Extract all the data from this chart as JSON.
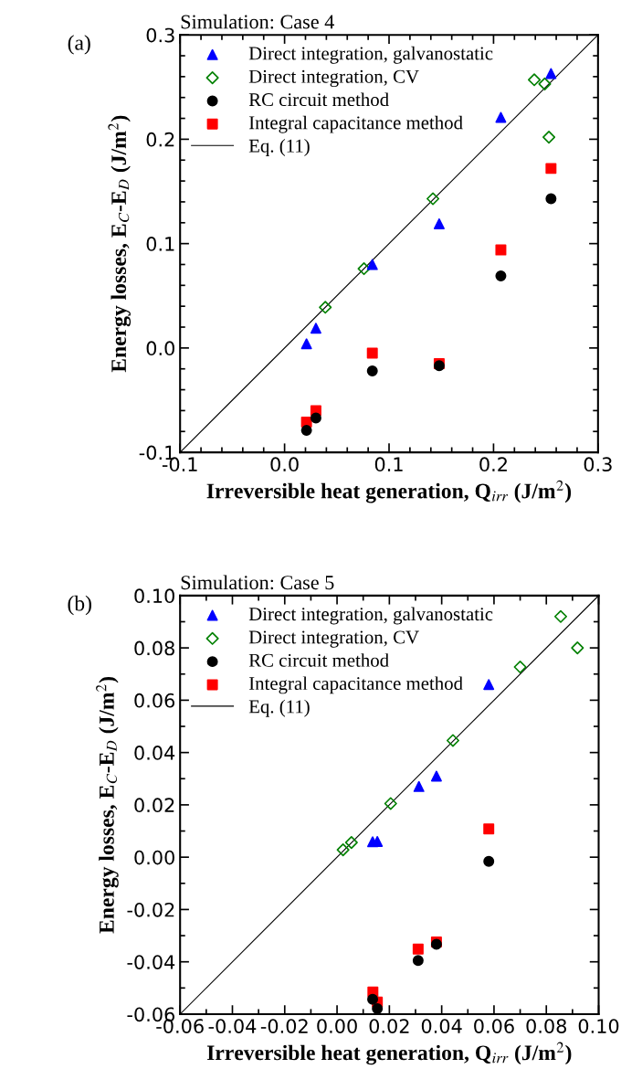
{
  "chart_data": [
    {
      "type": "scatter",
      "title": "Simulation: Case 4",
      "xlabel": "Irreversible heat generation, Q$_{irr}$ (J/m$^{2}$)",
      "ylabel": "Energy losses, E$_{C}$-E$_{D}$ (J/m$^{2}$)",
      "annotations": [
        "(a)"
      ],
      "xlim": [
        -0.1,
        0.3
      ],
      "ylim": [
        -0.1,
        0.3
      ],
      "xticks": [
        -0.1,
        {
          "value": 0,
          "label": "0.0"
        },
        0.1,
        0.2,
        0.3
      ],
      "yticks": [
        -0.1,
        {
          "value": 0,
          "label": "0.0"
        },
        0.1,
        0.2,
        0.3
      ],
      "legend": "top left",
      "grid": false,
      "series": [
        {
          "name": "Direct integration, galvanostatic",
          "color": "#0000ff",
          "marker": "triangle",
          "x": [
            0.021,
            0.03,
            0.084,
            0.148,
            0.207,
            0.255
          ],
          "values": [
            0.004,
            0.019,
            0.08,
            0.119,
            0.221,
            0.263
          ]
        },
        {
          "name": "Direct integration, CV",
          "color": "#008000",
          "marker": "diamond",
          "x": [
            0.039,
            0.076,
            0.142,
            0.239,
            0.249,
            0.253
          ],
          "values": [
            0.039,
            0.076,
            0.143,
            0.257,
            0.253,
            0.202
          ]
        },
        {
          "name": "RC circuit method",
          "color": "#000000",
          "marker": "circle",
          "x": [
            0.021,
            0.03,
            0.084,
            0.148,
            0.207,
            0.255
          ],
          "values": [
            -0.079,
            -0.067,
            -0.022,
            -0.017,
            0.069,
            0.143
          ]
        },
        {
          "name": "Integral capacitance method",
          "color": "#ff0000",
          "marker": "square",
          "x": [
            0.021,
            0.03,
            0.084,
            0.148,
            0.207,
            0.255
          ],
          "values": [
            -0.071,
            -0.06,
            -0.005,
            -0.015,
            0.094,
            0.172
          ]
        },
        {
          "name": "Eq. (11)",
          "type": "line",
          "color": "#000000",
          "marker": "none",
          "line_style": "solid",
          "x": [
            -0.1,
            0.3
          ],
          "values": [
            -0.1,
            0.3
          ]
        }
      ]
    },
    {
      "type": "scatter",
      "title": "Simulation: Case 5",
      "xlabel": "Irreversible heat generation, Q$_{irr}$ (J/m$^{2}$)",
      "ylabel": "Energy losses, E$_{C}$-E$_{D}$ (J/m$^{2}$)",
      "annotations": [
        "(b)"
      ],
      "xlim": [
        -0.06,
        0.1
      ],
      "ylim": [
        -0.06,
        0.1
      ],
      "xticks": [
        -0.06,
        -0.04,
        -0.02,
        {
          "value": 0,
          "label": "0.00"
        },
        {
          "value": 0.02,
          "label": "0.02"
        },
        {
          "value": 0.04,
          "label": "0.04"
        },
        {
          "value": 0.06,
          "label": "0.06"
        },
        {
          "value": 0.08,
          "label": "0.08"
        },
        {
          "value": 0.1,
          "label": "0.10"
        }
      ],
      "yticks": [
        -0.06,
        -0.04,
        -0.02,
        {
          "value": 0,
          "label": "0.00"
        },
        {
          "value": 0.02,
          "label": "0.02"
        },
        {
          "value": 0.04,
          "label": "0.04"
        },
        {
          "value": 0.06,
          "label": "0.06"
        },
        {
          "value": 0.08,
          "label": "0.08"
        },
        {
          "value": 0.1,
          "label": "0.10"
        }
      ],
      "legend": "top left",
      "grid": false,
      "series": [
        {
          "name": "Direct integration, galvanostatic",
          "color": "#0000ff",
          "marker": "triangle",
          "x": [
            0.0136,
            0.0154,
            0.0313,
            0.038,
            0.058
          ],
          "values": [
            0.0059,
            0.006,
            0.027,
            0.031,
            0.066
          ]
        },
        {
          "name": "Direct integration, CV",
          "color": "#008000",
          "marker": "diamond",
          "x": [
            0.0023,
            0.0055,
            0.0205,
            0.0443,
            0.07,
            0.0855,
            0.0919
          ],
          "values": [
            0.0028,
            0.0056,
            0.0205,
            0.0446,
            0.0727,
            0.092,
            0.08
          ]
        },
        {
          "name": "RC circuit method",
          "color": "#000000",
          "marker": "circle",
          "x": [
            0.0136,
            0.0154,
            0.031,
            0.038,
            0.058
          ],
          "values": [
            -0.0543,
            -0.0579,
            -0.0395,
            -0.0333,
            -0.0016
          ]
        },
        {
          "name": "Integral capacitance method",
          "color": "#ff0000",
          "marker": "square",
          "x": [
            0.0137,
            0.0154,
            0.031,
            0.038,
            0.058
          ],
          "values": [
            -0.0515,
            -0.0554,
            -0.0351,
            -0.0324,
            0.0108
          ]
        },
        {
          "name": "Eq. (11)",
          "type": "line",
          "color": "#000000",
          "marker": "none",
          "line_style": "solid",
          "x": [
            -0.06,
            0.1
          ],
          "values": [
            -0.06,
            0.1
          ]
        }
      ]
    }
  ]
}
